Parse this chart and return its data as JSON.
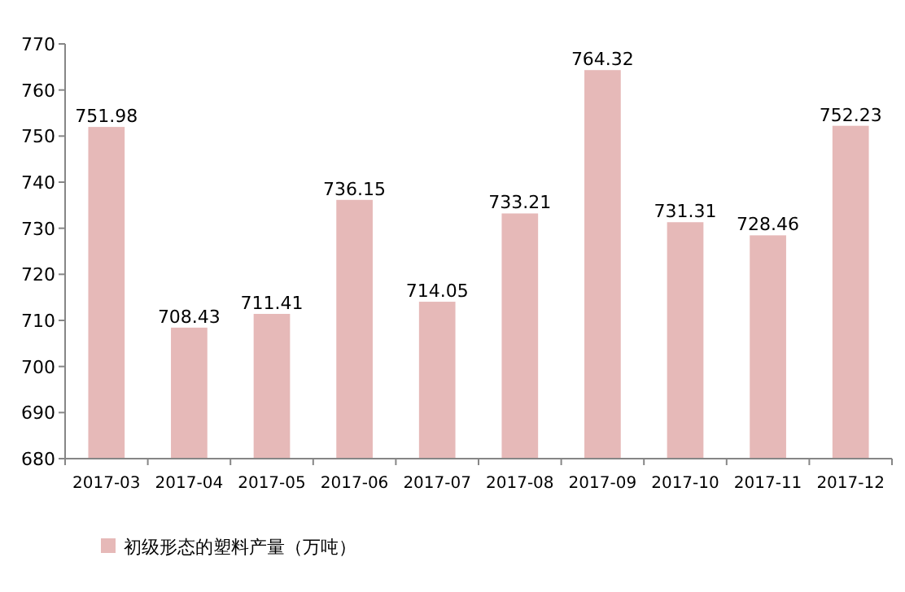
{
  "chart_data": {
    "type": "bar",
    "categories": [
      "2017-03",
      "2017-04",
      "2017-05",
      "2017-06",
      "2017-07",
      "2017-08",
      "2017-09",
      "2017-10",
      "2017-11",
      "2017-12"
    ],
    "series": [
      {
        "name": "初级形态的塑料产量（万吨）",
        "color": "#e6b9b8",
        "values": [
          751.98,
          708.43,
          711.41,
          736.15,
          714.05,
          733.21,
          764.32,
          731.31,
          728.46,
          752.23
        ]
      }
    ],
    "ylim": [
      680,
      770
    ],
    "yticks": [
      680,
      690,
      700,
      710,
      720,
      730,
      740,
      750,
      760,
      770
    ],
    "data_labels": true,
    "legend": "bottom",
    "grid": false
  }
}
